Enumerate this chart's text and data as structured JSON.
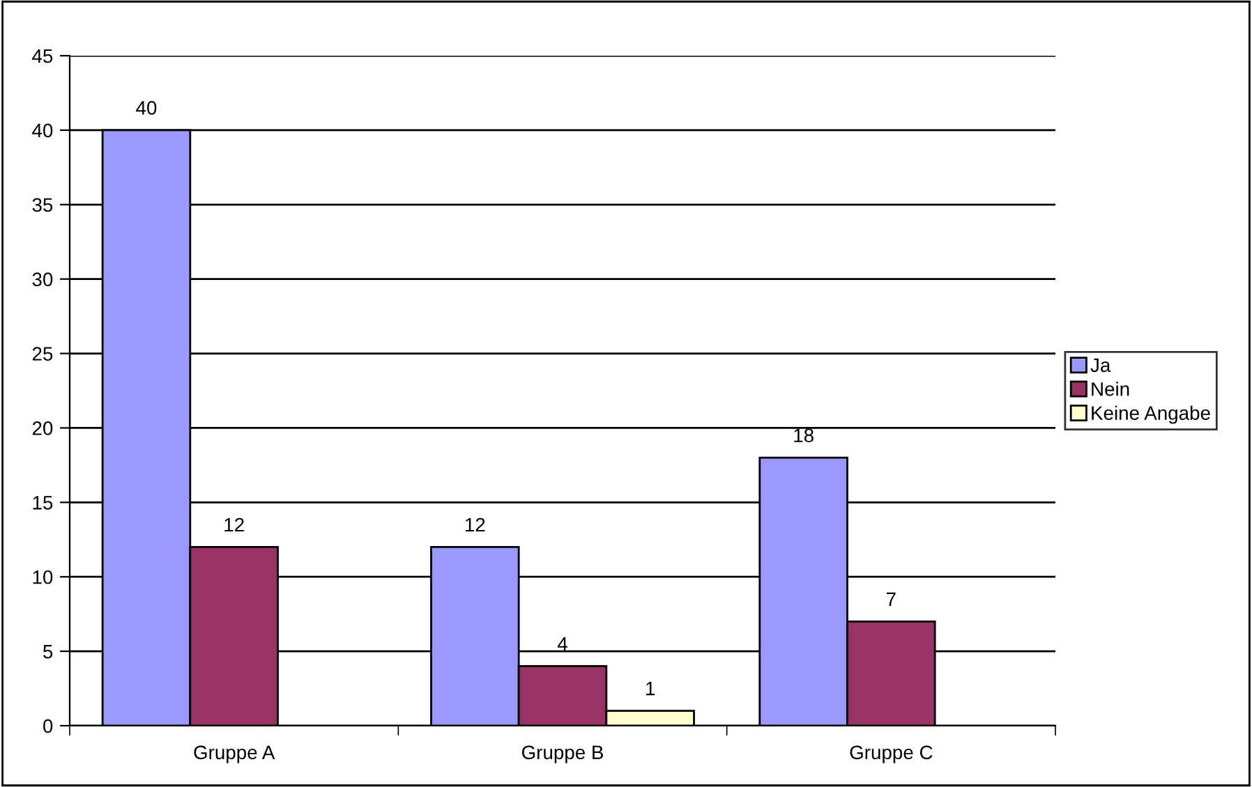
{
  "chart_data": {
    "type": "bar",
    "categories": [
      "Gruppe A",
      "Gruppe B",
      "Gruppe C"
    ],
    "series": [
      {
        "name": "Ja",
        "color": "#9999ff",
        "values": [
          40,
          12,
          18
        ]
      },
      {
        "name": "Nein",
        "color": "#993366",
        "values": [
          12,
          4,
          7
        ]
      },
      {
        "name": "Keine Angabe",
        "color": "#ffffcc",
        "values": [
          null,
          1,
          null
        ]
      }
    ],
    "ylim": [
      0,
      45
    ],
    "yticks": [
      0,
      5,
      10,
      15,
      20,
      25,
      30,
      35,
      40,
      45
    ],
    "grid": "y",
    "legend": "right",
    "data_labels": true
  }
}
